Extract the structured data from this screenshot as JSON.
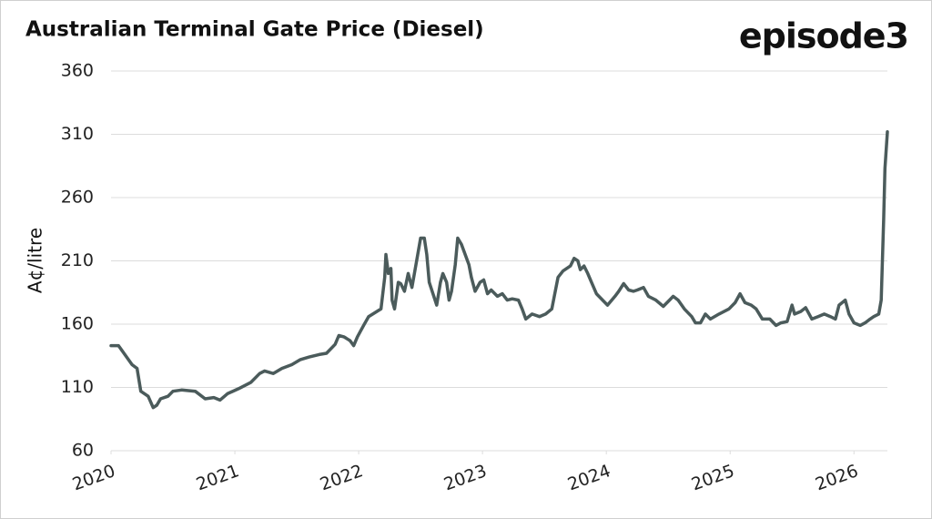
{
  "chart_data": {
    "type": "line",
    "title": "Australian Terminal Gate Price (Diesel)",
    "logo": "episode3",
    "ylabel": "A¢/litre",
    "color": "#4b5b5b",
    "grid": true,
    "xlim": [
      2020,
      2026.27
    ],
    "xticks": [
      2020,
      2021,
      2022,
      2023,
      2024,
      2025,
      2026
    ],
    "ylim": [
      60,
      360
    ],
    "yticks": [
      60,
      110,
      160,
      210,
      260,
      310,
      360
    ],
    "x": [
      2020.0,
      2020.06,
      2020.17,
      2020.21,
      2020.24,
      2020.3,
      2020.34,
      2020.37,
      2020.4,
      2020.46,
      2020.5,
      2020.57,
      2020.68,
      2020.76,
      2020.83,
      2020.88,
      2020.94,
      2021.03,
      2021.13,
      2021.2,
      2021.24,
      2021.31,
      2021.38,
      2021.46,
      2021.53,
      2021.6,
      2021.68,
      2021.74,
      2021.81,
      2021.84,
      2021.88,
      2021.93,
      2021.96,
      2021.99,
      2022.04,
      2022.08,
      2022.13,
      2022.18,
      2022.21,
      2022.22,
      2022.24,
      2022.26,
      2022.27,
      2022.29,
      2022.32,
      2022.34,
      2022.37,
      2022.4,
      2022.43,
      2022.45,
      2022.47,
      2022.5,
      2022.53,
      2022.55,
      2022.57,
      2022.6,
      2022.63,
      2022.66,
      2022.68,
      2022.71,
      2022.73,
      2022.75,
      2022.78,
      2022.8,
      2022.83,
      2022.86,
      2022.89,
      2022.91,
      2022.94,
      2022.98,
      2023.01,
      2023.04,
      2023.07,
      2023.12,
      2023.16,
      2023.2,
      2023.24,
      2023.29,
      2023.32,
      2023.35,
      2023.4,
      2023.46,
      2023.51,
      2023.56,
      2023.58,
      2023.61,
      2023.65,
      2023.71,
      2023.74,
      2023.77,
      2023.79,
      2023.82,
      2023.85,
      2023.88,
      2023.92,
      2023.97,
      2024.01,
      2024.07,
      2024.1,
      2024.14,
      2024.18,
      2024.22,
      2024.25,
      2024.3,
      2024.34,
      2024.4,
      2024.46,
      2024.51,
      2024.54,
      2024.58,
      2024.63,
      2024.69,
      2024.72,
      2024.76,
      2024.8,
      2024.84,
      2024.91,
      2024.99,
      2025.04,
      2025.08,
      2025.12,
      2025.17,
      2025.21,
      2025.26,
      2025.32,
      2025.37,
      2025.41,
      2025.46,
      2025.5,
      2025.52,
      2025.57,
      2025.61,
      2025.66,
      2025.71,
      2025.76,
      2025.81,
      2025.85,
      2025.88,
      2025.93,
      2025.96,
      2026.0,
      2026.05,
      2026.09,
      2026.13,
      2026.16,
      2026.2,
      2026.22,
      2026.24,
      2026.25,
      2026.27
    ],
    "values": [
      143,
      143,
      128,
      125,
      107,
      103,
      94,
      96,
      101,
      103,
      107,
      108,
      107,
      101,
      102,
      100,
      105,
      109,
      114,
      121,
      123,
      121,
      125,
      128,
      132,
      134,
      136,
      137,
      144,
      151,
      150,
      147,
      143,
      150,
      159,
      166,
      169,
      172,
      197,
      215,
      200,
      204,
      179,
      172,
      193,
      192,
      186,
      200,
      189,
      200,
      211,
      228,
      228,
      215,
      193,
      184,
      175,
      193,
      200,
      193,
      179,
      186,
      207,
      228,
      223,
      215,
      207,
      197,
      186,
      193,
      195,
      184,
      187,
      182,
      184,
      179,
      180,
      179,
      172,
      164,
      168,
      166,
      168,
      172,
      182,
      197,
      202,
      206,
      212,
      210,
      203,
      206,
      200,
      193,
      184,
      179,
      175,
      182,
      186,
      192,
      187,
      186,
      187,
      189,
      182,
      179,
      174,
      179,
      182,
      179,
      172,
      166,
      161,
      161,
      168,
      164,
      168,
      172,
      177,
      184,
      177,
      175,
      172,
      164,
      164,
      159,
      161,
      162,
      175,
      168,
      170,
      173,
      164,
      166,
      168,
      166,
      164,
      175,
      179,
      168,
      161,
      159,
      161,
      164,
      166,
      168,
      179,
      243,
      283,
      312
    ]
  }
}
